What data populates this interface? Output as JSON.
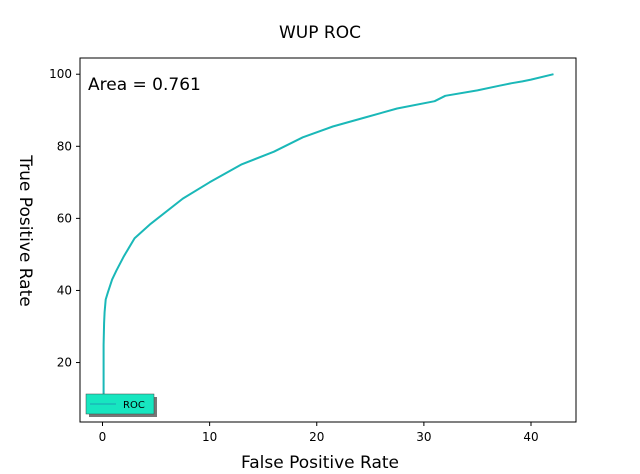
{
  "chart_data": {
    "type": "line",
    "title": "WUP ROC",
    "xlabel": "False Positive Rate",
    "ylabel": "True Positive Rate",
    "xlim": [
      -2.1,
      44.2
    ],
    "ylim": [
      3.5,
      104.5
    ],
    "x_ticks": [
      0,
      10,
      20,
      30,
      40
    ],
    "y_ticks": [
      20,
      40,
      60,
      80,
      100
    ],
    "annotation": "Area = 0.761",
    "grid": false,
    "legend": {
      "location": "lower-left",
      "entries": [
        "ROC"
      ]
    },
    "series": [
      {
        "name": "ROC",
        "color": "#1ab8b8",
        "x": [
          0.1,
          0.1,
          0.15,
          0.2,
          0.3,
          0.5,
          0.9,
          1.3,
          2.0,
          3.0,
          4.5,
          7.5,
          10.0,
          13.0,
          16.0,
          18.7,
          21.5,
          24.5,
          27.5,
          31.0,
          32.0,
          35.0,
          37.0,
          38.2,
          39.2,
          40.0,
          42.1
        ],
        "y": [
          10.0,
          25.0,
          31.0,
          34.0,
          37.5,
          39.5,
          43.0,
          45.5,
          49.5,
          54.5,
          58.5,
          65.5,
          70.0,
          75.0,
          78.5,
          82.5,
          85.5,
          88.0,
          90.5,
          92.5,
          94.0,
          95.5,
          96.8,
          97.5,
          98.0,
          98.5,
          100.0
        ]
      }
    ]
  }
}
